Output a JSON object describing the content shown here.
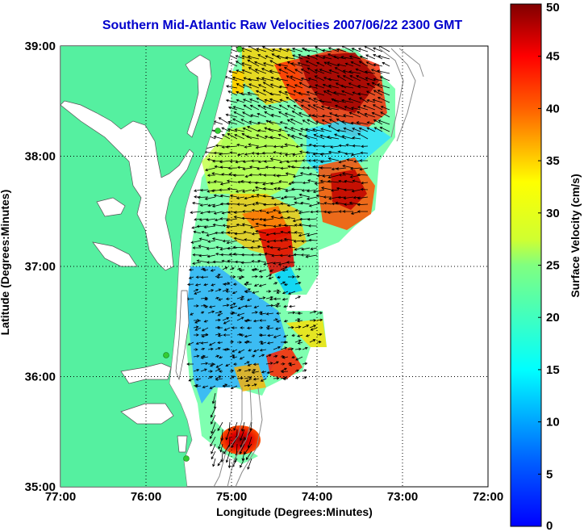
{
  "title": "Southern Mid-Atlantic Raw Velocities 2007/06/22 2300 GMT",
  "axes": {
    "xlabel": "Longitude (Degrees:Minutes)",
    "ylabel": "Latitude (Degrees:Minutes)",
    "xticks": [
      "77:00",
      "76:00",
      "75:00",
      "74:00",
      "73:00",
      "72:00"
    ],
    "yticks": [
      "39:00",
      "38:00",
      "37:00",
      "36:00",
      "35:00"
    ],
    "xlim": [
      -77,
      -72
    ],
    "ylim": [
      35,
      39
    ]
  },
  "colorbar": {
    "label": "Surface Velocity (cm/s)",
    "ticks": [
      "50",
      "45",
      "40",
      "35",
      "30",
      "25",
      "20",
      "15",
      "10",
      "5",
      "0"
    ],
    "range": [
      0,
      50
    ],
    "colormap": "jet"
  },
  "colors": {
    "land": "#55f0a0",
    "title": "#0000cc",
    "station_marker": "#33cc33"
  }
}
